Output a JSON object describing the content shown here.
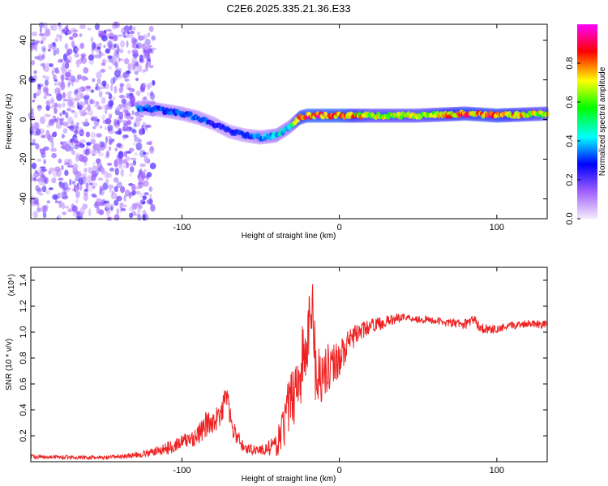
{
  "figure_title": "C2E6.2025.335.21.36.E33",
  "chart_data": [
    {
      "type": "heatmap",
      "title": "C2E6.2025.335.21.36.E33",
      "xlabel": "Height of straight line (km)",
      "ylabel": "Frequency (Hz)",
      "xlim": [
        -196,
        132
      ],
      "ylim": [
        -50,
        48
      ],
      "xticks": [
        -100,
        0,
        100
      ],
      "xtick_labels": [
        "-100",
        "0",
        "100"
      ],
      "yticks": [
        -40,
        -20,
        0,
        20,
        40
      ],
      "ytick_labels": [
        "-40",
        "-20",
        "0",
        "20",
        "40"
      ],
      "colorbar": {
        "label": "Normalized spectral amplitude",
        "range": [
          0,
          1
        ],
        "ticks": [
          0,
          0.2,
          0.4,
          0.6,
          0.8
        ],
        "tick_labels": [
          "0.0",
          "0.2",
          "0.4",
          "0.6",
          "0.8"
        ],
        "stops": [
          "#f4ecfb",
          "#a060ff",
          "#0000ff",
          "#00ffff",
          "#00ff00",
          "#ffff00",
          "#ff0000",
          "#ff00ff"
        ]
      },
      "ridge": {
        "x": [
          -128,
          -115,
          -100,
          -90,
          -80,
          -70,
          -60,
          -50,
          -40,
          -32,
          -25,
          -20,
          0,
          20,
          50,
          80,
          100,
          132
        ],
        "freq": [
          6,
          5,
          3,
          1,
          -2,
          -6,
          -8,
          -9,
          -8,
          -4,
          1,
          2,
          2,
          2,
          2,
          3,
          2,
          3
        ],
        "amplitude": [
          0.35,
          0.35,
          0.35,
          0.35,
          0.3,
          0.3,
          0.3,
          0.4,
          0.45,
          0.45,
          0.85,
          0.9,
          0.9,
          0.7,
          0.7,
          0.85,
          0.85,
          0.7
        ]
      },
      "noise_region_x": [
        -196,
        -118
      ],
      "noise_amplitude": 0.15
    },
    {
      "type": "line",
      "xlabel": "Height of straight line (km)",
      "ylabel": "SNR (10 * v/v)",
      "scale_note": "(x10⁴)",
      "xlim": [
        -196,
        132
      ],
      "ylim": [
        0,
        1.5
      ],
      "xticks": [
        -100,
        0,
        100
      ],
      "xtick_labels": [
        "-100",
        "0",
        "100"
      ],
      "yticks": [
        0.2,
        0.4,
        0.6,
        0.8,
        1.0,
        1.2,
        1.4
      ],
      "ytick_labels": [
        "0.2",
        "0.4",
        "0.6",
        "0.8",
        "1.0",
        "1.2",
        "1.4"
      ],
      "series": [
        {
          "name": "SNR",
          "color": "#ee2222",
          "x": [
            -196,
            -150,
            -130,
            -120,
            -110,
            -100,
            -90,
            -85,
            -80,
            -75,
            -72,
            -68,
            -60,
            -50,
            -40,
            -35,
            -30,
            -25,
            -20,
            -17,
            -15,
            -10,
            0,
            10,
            20,
            30,
            40,
            50,
            60,
            70,
            80,
            85,
            90,
            100,
            110,
            120,
            132
          ],
          "values": [
            0.04,
            0.03,
            0.05,
            0.07,
            0.1,
            0.15,
            0.2,
            0.28,
            0.32,
            0.35,
            0.55,
            0.25,
            0.1,
            0.09,
            0.12,
            0.3,
            0.5,
            0.7,
            0.9,
            1.3,
            0.65,
            0.7,
            0.8,
            0.98,
            1.05,
            1.08,
            1.12,
            1.1,
            1.09,
            1.07,
            1.06,
            1.1,
            1.03,
            1.02,
            1.05,
            1.07,
            1.06
          ],
          "amp": [
            0.015,
            0.015,
            0.02,
            0.03,
            0.05,
            0.06,
            0.08,
            0.1,
            0.1,
            0.1,
            0.08,
            0.08,
            0.04,
            0.04,
            0.08,
            0.2,
            0.25,
            0.3,
            0.35,
            0.25,
            0.3,
            0.2,
            0.15,
            0.08,
            0.05,
            0.05,
            0.03,
            0.03,
            0.03,
            0.03,
            0.04,
            0.04,
            0.04,
            0.03,
            0.03,
            0.03,
            0.03
          ]
        }
      ]
    }
  ]
}
